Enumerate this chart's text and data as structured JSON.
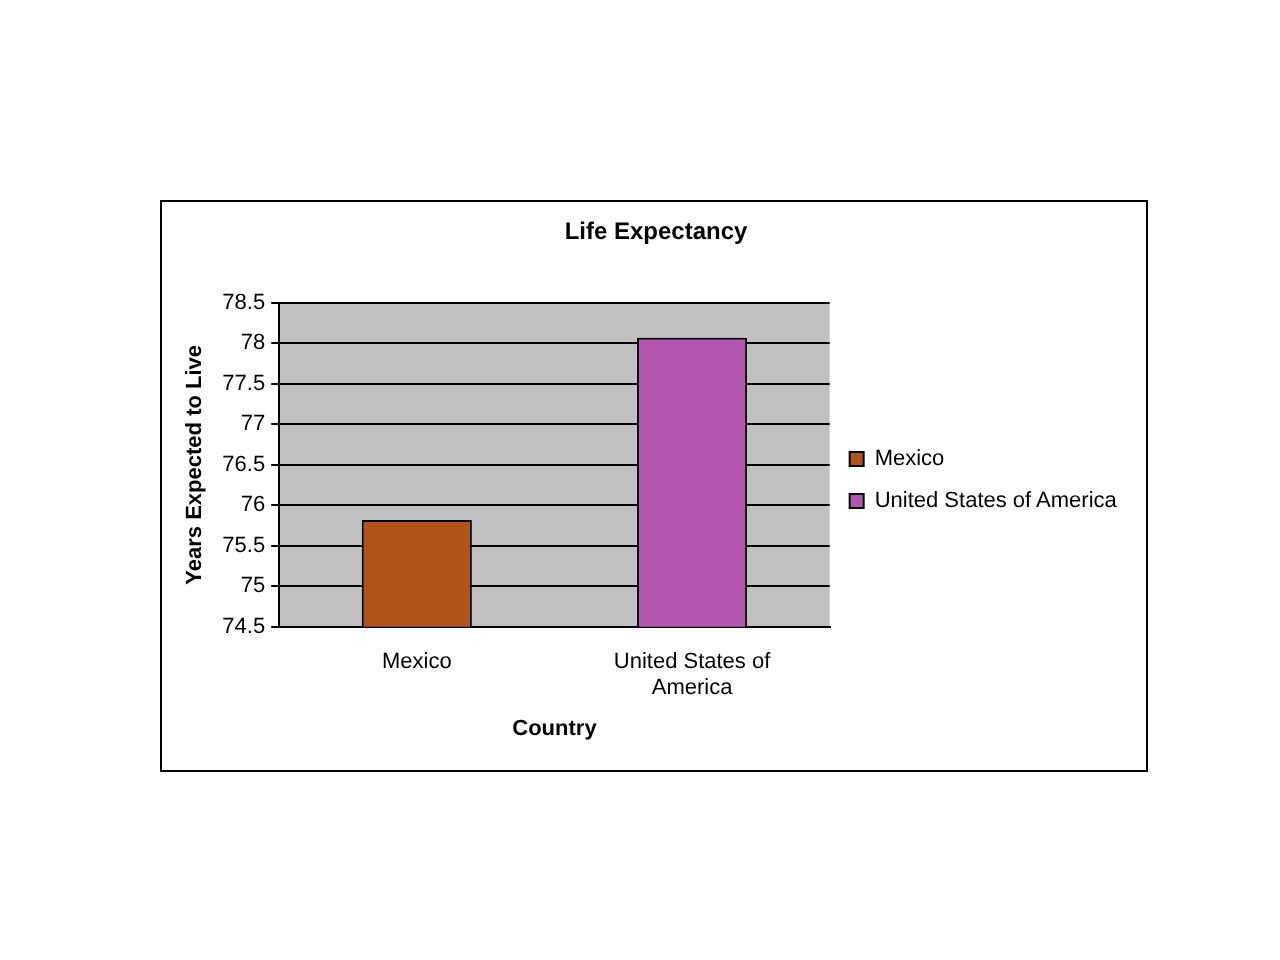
{
  "chart_data": {
    "type": "bar",
    "title": "Life Expectancy",
    "xlabel": "Country",
    "ylabel": "Years Expected to Live",
    "categories": [
      "Mexico",
      "United States of America"
    ],
    "series": [
      {
        "name": "Mexico",
        "color": "#b0521a",
        "values": [
          75.82,
          null
        ]
      },
      {
        "name": "United States of America",
        "color": "#b455b0",
        "values": [
          null,
          78.07
        ]
      }
    ],
    "ylim": [
      74.5,
      78.5
    ],
    "yticks": [
      74.5,
      75,
      75.5,
      76,
      76.5,
      77,
      77.5,
      78,
      78.5
    ],
    "grid": "y",
    "legend": "right"
  }
}
